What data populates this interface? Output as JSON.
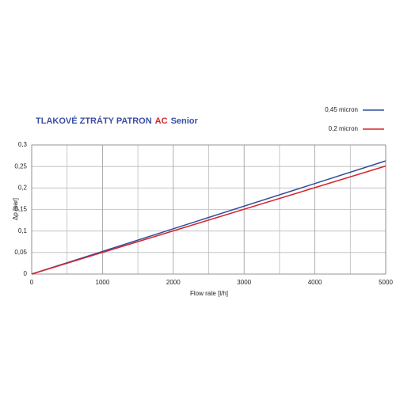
{
  "chart_data": {
    "type": "line",
    "title_parts": [
      "TLAKOVÉ ZTRÁTY PATRON",
      "AC",
      "Senior"
    ],
    "title_colors": [
      "#3b4fa3",
      "#d7242f",
      "#3b4fa3"
    ],
    "x_label": "Flow rate [l/h]",
    "y_label": "Δp [bar]",
    "x": [
      0,
      5000
    ],
    "series": [
      {
        "name": "0,45 micron",
        "color": "#2f4f9c",
        "values": [
          0,
          0.263
        ]
      },
      {
        "name": "0,2 micron",
        "color": "#d7242f",
        "values": [
          0,
          0.251
        ]
      }
    ],
    "xlim": [
      0,
      5000
    ],
    "xticks": [
      0,
      1000,
      2000,
      3000,
      4000,
      5000
    ],
    "x_minor_grid": [
      500,
      1500,
      2500,
      3500,
      4500
    ],
    "ylim": [
      0,
      0.3
    ],
    "yticks": [
      0,
      {
        "value": 0.05,
        "label": "0,05"
      },
      {
        "value": 0.1,
        "label": "0,1"
      },
      {
        "value": 0.15,
        "label": "0,15"
      },
      {
        "value": 0.2,
        "label": "0,2"
      },
      {
        "value": 0.25,
        "label": "0,25"
      },
      {
        "value": 0.3,
        "label": "0,3"
      }
    ],
    "grid": true,
    "legend": "top-right"
  }
}
